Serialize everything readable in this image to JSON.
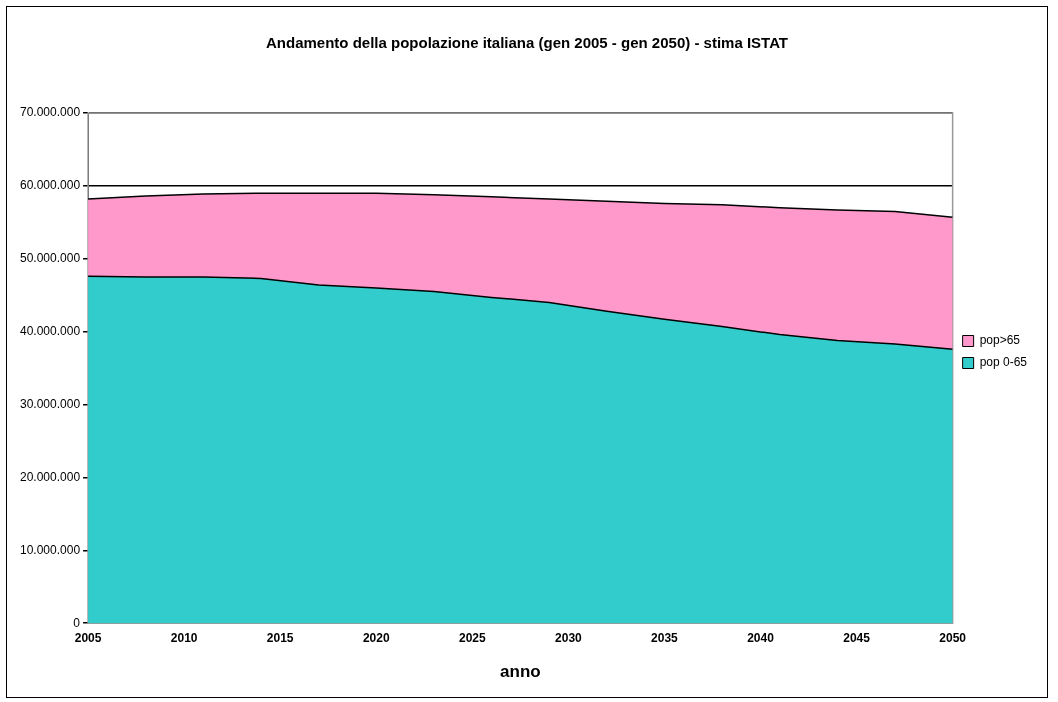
{
  "chart_data": {
    "type": "area",
    "stacked": true,
    "title": "Andamento della popolazione italiana (gen 2005 - gen 2050) - stima ISTAT",
    "xlabel": "anno",
    "x": [
      2005,
      2008,
      2011,
      2014,
      2017,
      2020,
      2023,
      2026,
      2029,
      2032,
      2035,
      2038,
      2041,
      2044,
      2047,
      2050
    ],
    "series": [
      {
        "name": "pop 0-65",
        "color": "#33cccc",
        "values": [
          47600000,
          47500000,
          47500000,
          47300000,
          46400000,
          46000000,
          45500000,
          44700000,
          44000000,
          42800000,
          41700000,
          40700000,
          39600000,
          38800000,
          38300000,
          37600000
        ]
      },
      {
        "name": "pop>65",
        "color": "#ff99cc",
        "values": [
          10600000,
          11100000,
          11400000,
          11700000,
          12600000,
          13000000,
          13300000,
          13800000,
          14200000,
          15100000,
          15900000,
          16700000,
          17400000,
          17900000,
          18200000,
          18100000
        ]
      }
    ],
    "xlim": [
      2005,
      2050
    ],
    "xticks": [
      2005,
      2010,
      2015,
      2020,
      2025,
      2030,
      2035,
      2040,
      2045,
      2050
    ],
    "ylim": [
      0,
      70000000
    ],
    "yticks": [
      {
        "value": 0,
        "label": "0"
      },
      {
        "value": 10000000,
        "label": "10.000.000"
      },
      {
        "value": 20000000,
        "label": "20.000.000"
      },
      {
        "value": 30000000,
        "label": "30.000.000"
      },
      {
        "value": 40000000,
        "label": "40.000.000"
      },
      {
        "value": 50000000,
        "label": "50.000.000"
      },
      {
        "value": 60000000,
        "label": "60.000.000"
      },
      {
        "value": 70000000,
        "label": "70.000.000"
      }
    ],
    "grid": "y",
    "legend": "right"
  }
}
